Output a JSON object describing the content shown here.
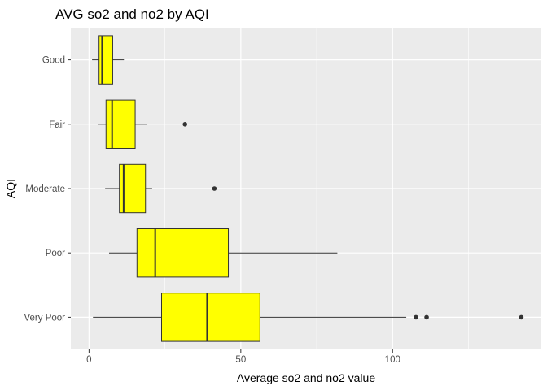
{
  "chart_data": {
    "type": "boxplot",
    "orientation": "horizontal",
    "title": "AVG so2 and no2 by AQI",
    "xlabel": "Average so2 and no2 value",
    "ylabel": "AQI",
    "xlim": [
      -6,
      149
    ],
    "x_ticks": [
      0,
      50,
      100
    ],
    "x_tick_labels": [
      "0",
      "50",
      "100"
    ],
    "grid": true,
    "box_fill": "#ffff00",
    "box_stroke": "#333333",
    "panel_background": "#ebebeb",
    "categories": [
      "Good",
      "Fair",
      "Moderate",
      "Poor",
      "Very Poor"
    ],
    "boxes": [
      {
        "category": "Good",
        "whisker_low": 1.0,
        "q1": 3.3,
        "median": 4.3,
        "q3": 7.8,
        "whisker_high": 11.5,
        "outliers": []
      },
      {
        "category": "Fair",
        "whisker_low": 3.0,
        "q1": 5.6,
        "median": 7.6,
        "q3": 15.2,
        "whisker_high": 19.2,
        "outliers": [
          31.6
        ]
      },
      {
        "category": "Moderate",
        "whisker_low": 5.3,
        "q1": 10.0,
        "median": 11.4,
        "q3": 18.6,
        "whisker_high": 20.8,
        "outliers": [
          41.3
        ]
      },
      {
        "category": "Poor",
        "whisker_low": 6.6,
        "q1": 15.8,
        "median": 21.8,
        "q3": 45.9,
        "whisker_high": 81.8,
        "outliers": []
      },
      {
        "category": "Very Poor",
        "whisker_low": 1.3,
        "q1": 23.9,
        "median": 38.9,
        "q3": 56.3,
        "whisker_high": 104.5,
        "outliers": [
          107.7,
          111.2,
          142.4
        ]
      }
    ]
  }
}
